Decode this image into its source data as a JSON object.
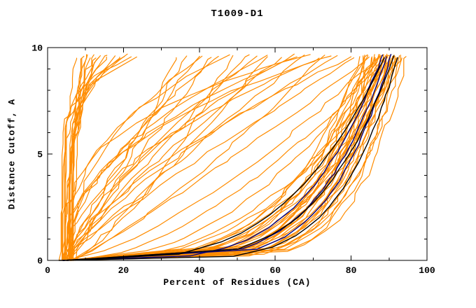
{
  "chart_data": {
    "type": "line",
    "title": "T1009-D1",
    "xlabel": "Percent of Residues (CA)",
    "ylabel": "Distance Cutoff, A",
    "xlim": [
      0,
      100
    ],
    "ylim": [
      0,
      10
    ],
    "xticks": [
      0,
      20,
      40,
      60,
      80,
      100
    ],
    "yticks": [
      0,
      5,
      10
    ],
    "xtick_minor_step": 10,
    "ytick_minor_step": 1,
    "grid": false,
    "legend": "none",
    "colors": {
      "orange": "#FF8C00",
      "navy": "#000080",
      "black": "#000000"
    },
    "curve_model": "cumulative model-accuracy curves; each curve encoded as [x_start_pct, x_at_top_pct, shape_exponent]; x(y) = xs + (xt - xs) * (y/10)^g, y in Angstroms 0..10",
    "series_groups": [
      {
        "name": "server-models-orange",
        "color": "orange",
        "linewidth": 1.2,
        "jitter": 1.6,
        "curves": [
          [
            5,
            95,
            0.14
          ],
          [
            4,
            94,
            0.16
          ],
          [
            6,
            93,
            0.15
          ],
          [
            5,
            93,
            0.2
          ],
          [
            4,
            92,
            0.17
          ],
          [
            6,
            92,
            0.22
          ],
          [
            5,
            92,
            0.13
          ],
          [
            3,
            91,
            0.19
          ],
          [
            6,
            91,
            0.25
          ],
          [
            5,
            91,
            0.15
          ],
          [
            4,
            90,
            0.21
          ],
          [
            6,
            90,
            0.17
          ],
          [
            5,
            90,
            0.28
          ],
          [
            4,
            90,
            0.14
          ],
          [
            6,
            89,
            0.2
          ],
          [
            5,
            89,
            0.24
          ],
          [
            4,
            89,
            0.16
          ],
          [
            6,
            88,
            0.19
          ],
          [
            5,
            88,
            0.27
          ],
          [
            4,
            88,
            0.15
          ],
          [
            6,
            87,
            0.22
          ],
          [
            5,
            87,
            0.18
          ],
          [
            4,
            87,
            0.3
          ],
          [
            6,
            86,
            0.2
          ],
          [
            5,
            86,
            0.16
          ],
          [
            4,
            85,
            0.24
          ],
          [
            6,
            85,
            0.19
          ],
          [
            5,
            84,
            0.28
          ],
          [
            4,
            84,
            0.18
          ],
          [
            6,
            83,
            0.22
          ],
          [
            5,
            90,
            0.35
          ],
          [
            6,
            91,
            0.32
          ],
          [
            4,
            93,
            0.25
          ],
          [
            5,
            94,
            0.3
          ],
          [
            6,
            92,
            0.4
          ],
          [
            5,
            89,
            0.45
          ],
          [
            5,
            90,
            0.7
          ],
          [
            6,
            88,
            0.9
          ],
          [
            4,
            85,
            1.1
          ],
          [
            7,
            92,
            0.6
          ],
          [
            5,
            80,
            1.3
          ],
          [
            6,
            75,
            0.8
          ],
          [
            4,
            70,
            1.0
          ],
          [
            5,
            65,
            1.2
          ],
          [
            6,
            85,
            1.5
          ],
          [
            4,
            78,
            1.8
          ],
          [
            7,
            60,
            0.9
          ],
          [
            5,
            55,
            1.1
          ],
          [
            6,
            50,
            0.7
          ],
          [
            4,
            45,
            1.0
          ],
          [
            5,
            72,
            2.2
          ],
          [
            6,
            68,
            1.6
          ],
          [
            4,
            62,
            2.0
          ],
          [
            7,
            58,
            1.4
          ],
          [
            5,
            48,
            1.7
          ],
          [
            6,
            42,
            1.3
          ],
          [
            4,
            38,
            1.0
          ],
          [
            5,
            35,
            0.8
          ],
          [
            6,
            82,
            2.5
          ],
          [
            4,
            76,
            3.0
          ],
          [
            5,
            52,
            2.6
          ],
          [
            6,
            44,
            2.2
          ],
          [
            4,
            12,
            2.0
          ],
          [
            5,
            15,
            3.0
          ],
          [
            6,
            10,
            1.5
          ],
          [
            3,
            8,
            2.0
          ],
          [
            5,
            20,
            4.0
          ],
          [
            4,
            18,
            5.0
          ],
          [
            6,
            14,
            3.5
          ],
          [
            5,
            9,
            1.2
          ],
          [
            4,
            25,
            6.0
          ],
          [
            6,
            22,
            5.0
          ],
          [
            5,
            11,
            2.5
          ],
          [
            3,
            16,
            4.5
          ],
          [
            6,
            30,
            7.0
          ],
          [
            4,
            28,
            6.5
          ],
          [
            5,
            13,
            3.0
          ],
          [
            4,
            10,
            1.8
          ],
          [
            6,
            17,
            4.0
          ],
          [
            5,
            24,
            5.5
          ]
        ]
      },
      {
        "name": "highlighted-models-navy",
        "color": "navy",
        "linewidth": 1.4,
        "jitter": 0.5,
        "curves": [
          [
            4,
            91,
            0.18
          ],
          [
            5,
            90,
            0.21
          ],
          [
            4,
            89,
            0.24
          ]
        ]
      },
      {
        "name": "highlighted-models-black",
        "color": "black",
        "linewidth": 1.4,
        "jitter": 0.4,
        "curves": [
          [
            3,
            93,
            0.17
          ],
          [
            4,
            92,
            0.22
          ],
          [
            5,
            90,
            0.3
          ]
        ]
      }
    ]
  }
}
